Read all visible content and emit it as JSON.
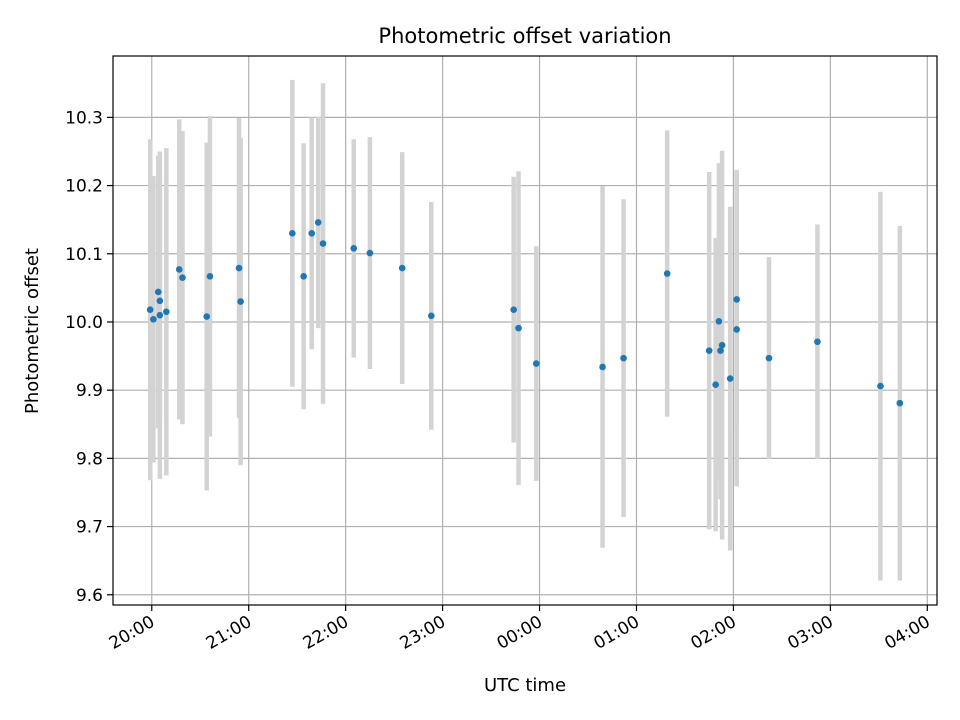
{
  "chart_data": {
    "type": "scatter",
    "title": "Photometric offset variation",
    "xlabel": "UTC time",
    "ylabel": "Photometric offset",
    "grid": true,
    "xlim_hours": [
      19.6,
      28.1
    ],
    "ylim": [
      9.585,
      10.39
    ],
    "x_ticks": [
      {
        "hour": 20,
        "label": "20:00"
      },
      {
        "hour": 21,
        "label": "21:00"
      },
      {
        "hour": 22,
        "label": "22:00"
      },
      {
        "hour": 23,
        "label": "23:00"
      },
      {
        "hour": 24,
        "label": "00:00"
      },
      {
        "hour": 25,
        "label": "01:00"
      },
      {
        "hour": 26,
        "label": "02:00"
      },
      {
        "hour": 27,
        "label": "03:00"
      },
      {
        "hour": 28,
        "label": "04:00"
      }
    ],
    "y_ticks": [
      {
        "value": 9.6,
        "label": "9.6"
      },
      {
        "value": 9.7,
        "label": "9.7"
      },
      {
        "value": 9.8,
        "label": "9.8"
      },
      {
        "value": 9.9,
        "label": "9.9"
      },
      {
        "value": 10.0,
        "label": "10.0"
      },
      {
        "value": 10.1,
        "label": "10.1"
      },
      {
        "value": 10.2,
        "label": "10.2"
      },
      {
        "value": 10.3,
        "label": "10.3"
      }
    ],
    "colors": {
      "points": "#1f77b4",
      "errorbars": "#d3d3d3",
      "grid": "#b0b0b0"
    },
    "series": [
      {
        "points": [
          {
            "t": "19:59",
            "y": 10.018,
            "err": 0.25
          },
          {
            "t": "20:01",
            "y": 10.004,
            "err": 0.21
          },
          {
            "t": "20:04",
            "y": 10.044,
            "err": 0.2
          },
          {
            "t": "20:05",
            "y": 10.031,
            "err": 0.18
          },
          {
            "t": "20:05",
            "y": 10.01,
            "err": 0.24
          },
          {
            "t": "20:09",
            "y": 10.015,
            "err": 0.24
          },
          {
            "t": "20:17",
            "y": 10.077,
            "err": 0.22
          },
          {
            "t": "20:19",
            "y": 10.065,
            "err": 0.215
          },
          {
            "t": "20:34",
            "y": 10.008,
            "err": 0.255
          },
          {
            "t": "20:36",
            "y": 10.067,
            "err": 0.235
          },
          {
            "t": "20:54",
            "y": 10.079,
            "err": 0.22
          },
          {
            "t": "20:55",
            "y": 10.03,
            "err": 0.24
          },
          {
            "t": "21:27",
            "y": 10.13,
            "err": 0.225
          },
          {
            "t": "21:34",
            "y": 10.067,
            "err": 0.195
          },
          {
            "t": "21:39",
            "y": 10.13,
            "err": 0.17
          },
          {
            "t": "21:43",
            "y": 10.146,
            "err": 0.155
          },
          {
            "t": "21:46",
            "y": 10.115,
            "err": 0.235
          },
          {
            "t": "22:05",
            "y": 10.108,
            "err": 0.16
          },
          {
            "t": "22:15",
            "y": 10.101,
            "err": 0.17
          },
          {
            "t": "22:35",
            "y": 10.079,
            "err": 0.17
          },
          {
            "t": "22:53",
            "y": 10.009,
            "err": 0.167
          },
          {
            "t": "23:44",
            "y": 10.018,
            "err": 0.195
          },
          {
            "t": "23:47",
            "y": 9.991,
            "err": 0.23
          },
          {
            "t": "23:58",
            "y": 9.939,
            "err": 0.172
          },
          {
            "t": "00:39",
            "y": 9.934,
            "err": 0.265
          },
          {
            "t": "00:52",
            "y": 9.947,
            "err": 0.233
          },
          {
            "t": "01:19",
            "y": 10.071,
            "err": 0.21
          },
          {
            "t": "01:45",
            "y": 9.958,
            "err": 0.262
          },
          {
            "t": "01:49",
            "y": 9.908,
            "err": 0.215
          },
          {
            "t": "01:51",
            "y": 10.001,
            "err": 0.232
          },
          {
            "t": "01:52",
            "y": 9.958,
            "err": 0.218
          },
          {
            "t": "01:53",
            "y": 9.966,
            "err": 0.285
          },
          {
            "t": "01:58",
            "y": 9.917,
            "err": 0.252
          },
          {
            "t": "02:02",
            "y": 10.033,
            "err": 0.19
          },
          {
            "t": "02:02",
            "y": 9.989,
            "err": 0.23
          },
          {
            "t": "02:22",
            "y": 9.947,
            "err": 0.148
          },
          {
            "t": "02:52",
            "y": 9.971,
            "err": 0.172
          },
          {
            "t": "03:31",
            "y": 9.906,
            "err": 0.285
          },
          {
            "t": "03:43",
            "y": 9.881,
            "err": 0.26
          }
        ]
      }
    ]
  }
}
